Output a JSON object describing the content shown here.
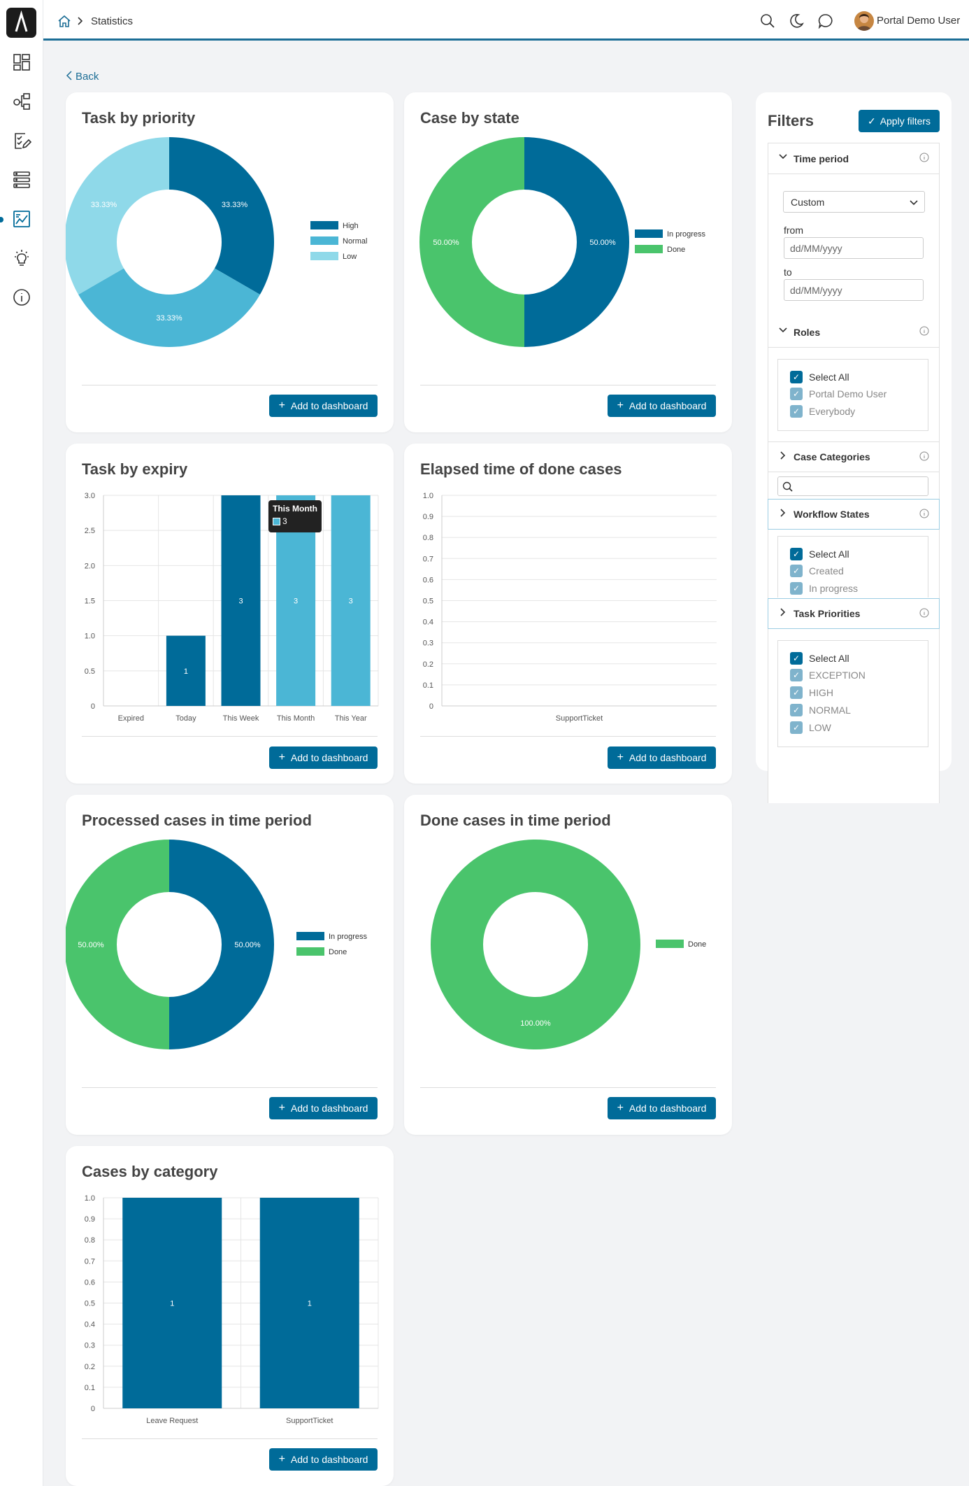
{
  "topbar": {
    "breadcrumb": "Statistics",
    "user_name": "Portal Demo User"
  },
  "back_label": "Back",
  "add_to_dashboard_label": "Add to dashboard",
  "colors": {
    "dark": "#006b99",
    "mid": "#4bb6d5",
    "light": "#8fd9e9",
    "green": "#4ac46c",
    "accent": "#006b99"
  },
  "cards": {
    "task_priority": {
      "title": "Task by priority"
    },
    "case_state": {
      "title": "Case by state"
    },
    "task_expiry": {
      "title": "Task by expiry",
      "tooltip_title": "This Month",
      "tooltip_value": "3"
    },
    "elapsed": {
      "title": "Elapsed time of done cases"
    },
    "processed": {
      "title": "Processed cases in time period"
    },
    "done_cases": {
      "title": "Done cases in time period"
    },
    "categories": {
      "title": "Cases by category"
    }
  },
  "chart_data": [
    {
      "id": "task_priority",
      "type": "pie",
      "title": "Task by priority",
      "categories": [
        "High",
        "Normal",
        "Low"
      ],
      "values": [
        33.33,
        33.33,
        33.33
      ],
      "labels": [
        "33.33%",
        "33.33%",
        "33.33%"
      ],
      "legend": "right"
    },
    {
      "id": "case_state",
      "type": "pie",
      "title": "Case by state",
      "categories": [
        "In progress",
        "Done"
      ],
      "values": [
        50,
        50
      ],
      "labels": [
        "50.00%",
        "50.00%"
      ],
      "legend": "right"
    },
    {
      "id": "task_expiry",
      "type": "bar",
      "title": "Task by expiry",
      "categories": [
        "Expired",
        "Today",
        "This Week",
        "This Month",
        "This Year"
      ],
      "values": [
        0,
        1,
        3,
        3,
        3
      ],
      "value_labels": [
        "",
        "1",
        "3",
        "3",
        "3"
      ],
      "ylim": [
        0,
        3
      ],
      "yticks": [
        "0",
        "0.5",
        "1.0",
        "1.5",
        "2.0",
        "2.5",
        "3.0"
      ]
    },
    {
      "id": "elapsed",
      "type": "bar",
      "title": "Elapsed time of done cases",
      "categories": [
        "SupportTicket"
      ],
      "values": [
        0
      ],
      "ylim": [
        0,
        1
      ],
      "yticks": [
        "0",
        "0.1",
        "0.2",
        "0.3",
        "0.4",
        "0.5",
        "0.6",
        "0.7",
        "0.8",
        "0.9",
        "1.0"
      ]
    },
    {
      "id": "processed",
      "type": "pie",
      "title": "Processed cases in time period",
      "categories": [
        "In progress",
        "Done"
      ],
      "values": [
        50,
        50
      ],
      "labels": [
        "50.00%",
        "50.00%"
      ],
      "legend": "right"
    },
    {
      "id": "done_cases",
      "type": "pie",
      "title": "Done cases in time period",
      "categories": [
        "Done"
      ],
      "values": [
        100
      ],
      "labels": [
        "100.00%"
      ],
      "legend": "right"
    },
    {
      "id": "categories",
      "type": "bar",
      "title": "Cases by category",
      "categories": [
        "Leave Request",
        "SupportTicket"
      ],
      "values": [
        1,
        1
      ],
      "value_labels": [
        "1",
        "1"
      ],
      "ylim": [
        0,
        1
      ],
      "yticks": [
        "0",
        "0.1",
        "0.2",
        "0.3",
        "0.4",
        "0.5",
        "0.6",
        "0.7",
        "0.8",
        "0.9",
        "1.0"
      ]
    }
  ],
  "filters": {
    "title": "Filters",
    "apply_label": "Apply filters",
    "time_period": {
      "label": "Time period",
      "select_value": "Custom",
      "from_label": "from",
      "to_label": "to",
      "from_placeholder": "dd/MM/yyyy",
      "to_placeholder": "dd/MM/yyyy"
    },
    "roles": {
      "label": "Roles",
      "items": [
        "Select All",
        "Portal Demo User",
        "Everybody"
      ]
    },
    "case_categories": {
      "label": "Case Categories"
    },
    "workflow_states": {
      "label": "Workflow States",
      "items": [
        "Select All",
        "Created",
        "In progress"
      ]
    },
    "task_priorities": {
      "label": "Task Priorities",
      "items": [
        "Select All",
        "EXCEPTION",
        "HIGH",
        "NORMAL",
        "LOW"
      ]
    }
  }
}
